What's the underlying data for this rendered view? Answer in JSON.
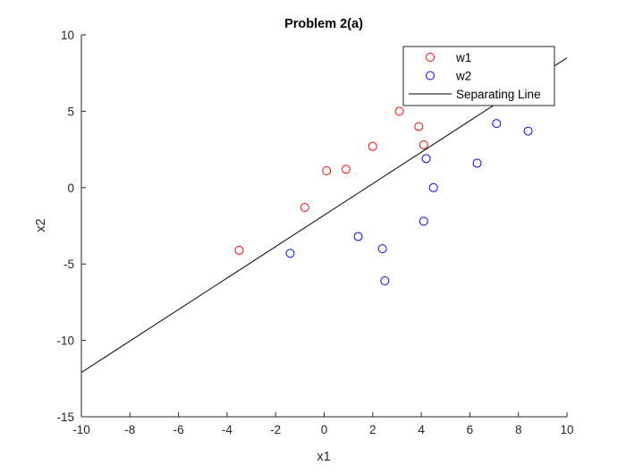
{
  "chart_data": {
    "type": "scatter",
    "title": "Problem 2(a)",
    "xlabel": "x1",
    "ylabel": "x2",
    "xlim": [
      -10,
      10
    ],
    "ylim": [
      -15,
      10
    ],
    "xticks": [
      -10,
      -8,
      -6,
      -4,
      -2,
      0,
      2,
      4,
      6,
      8,
      10
    ],
    "yticks": [
      -15,
      -10,
      -5,
      0,
      5,
      10
    ],
    "xtick_labels": [
      "-10",
      "-8",
      "-6",
      "-4",
      "-2",
      "0",
      "2",
      "4",
      "6",
      "8",
      "10"
    ],
    "ytick_labels": [
      "-15",
      "-10",
      "-5",
      "0",
      "5",
      "10"
    ],
    "grid": false,
    "legend_position": "top-right",
    "series": [
      {
        "name": "w1",
        "kind": "scatter",
        "marker": "circle-open",
        "color": "#ff0000",
        "points": [
          [
            -3.5,
            -4.1
          ],
          [
            -0.8,
            -1.3
          ],
          [
            0.1,
            1.1
          ],
          [
            0.9,
            1.2
          ],
          [
            2.0,
            2.7
          ],
          [
            3.1,
            5.0
          ],
          [
            3.9,
            4.0
          ],
          [
            4.1,
            2.8
          ]
        ]
      },
      {
        "name": "w2",
        "kind": "scatter",
        "marker": "circle-open",
        "color": "#0000ff",
        "points": [
          [
            -1.4,
            -4.3
          ],
          [
            1.4,
            -3.2
          ],
          [
            2.4,
            -4.0
          ],
          [
            2.5,
            -6.1
          ],
          [
            4.1,
            -2.2
          ],
          [
            4.2,
            1.9
          ],
          [
            4.5,
            0.0
          ],
          [
            6.3,
            1.6
          ],
          [
            7.1,
            4.2
          ],
          [
            8.4,
            3.7
          ]
        ]
      },
      {
        "name": "Separating Line",
        "kind": "line",
        "color": "#000000",
        "points": [
          [
            -10,
            -12.1
          ],
          [
            10,
            8.5
          ]
        ]
      }
    ]
  }
}
